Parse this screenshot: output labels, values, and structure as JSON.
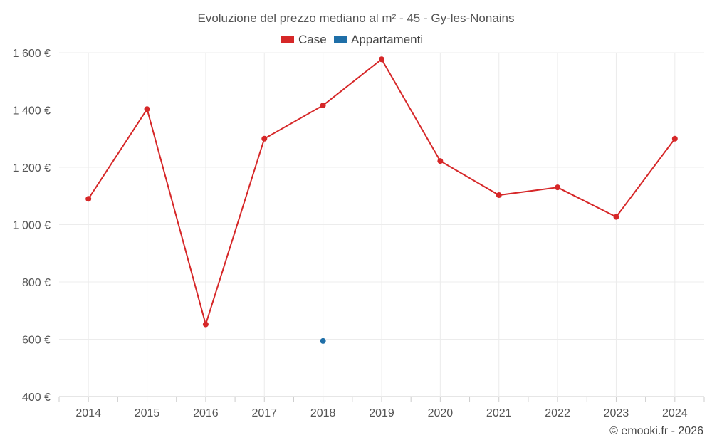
{
  "chart_data": {
    "type": "line",
    "title": "Evoluzione del prezzo mediano al m² - 45 - Gy-les-Nonains",
    "categories": [
      "2014",
      "2015",
      "2016",
      "2017",
      "2018",
      "2019",
      "2020",
      "2021",
      "2022",
      "2023",
      "2024"
    ],
    "ylim": [
      400,
      1600
    ],
    "yticks": [
      400,
      600,
      800,
      1000,
      1200,
      1400,
      1600
    ],
    "ytick_labels": [
      "400 €",
      "600 €",
      "800 €",
      "1 000 €",
      "1 200 €",
      "1 400 €",
      "1 600 €"
    ],
    "grid": true,
    "legend_position": "top-center",
    "series": [
      {
        "name": "Case",
        "color": "#d62728",
        "values": [
          1090,
          1403,
          652,
          1300,
          1416,
          1577,
          1222,
          1103,
          1130,
          1027,
          1300
        ]
      },
      {
        "name": "Appartamenti",
        "color": "#1f6fa8",
        "values": [
          null,
          null,
          null,
          null,
          594,
          null,
          null,
          null,
          null,
          null,
          null
        ]
      }
    ]
  },
  "credit": "© emooki.fr - 2026"
}
